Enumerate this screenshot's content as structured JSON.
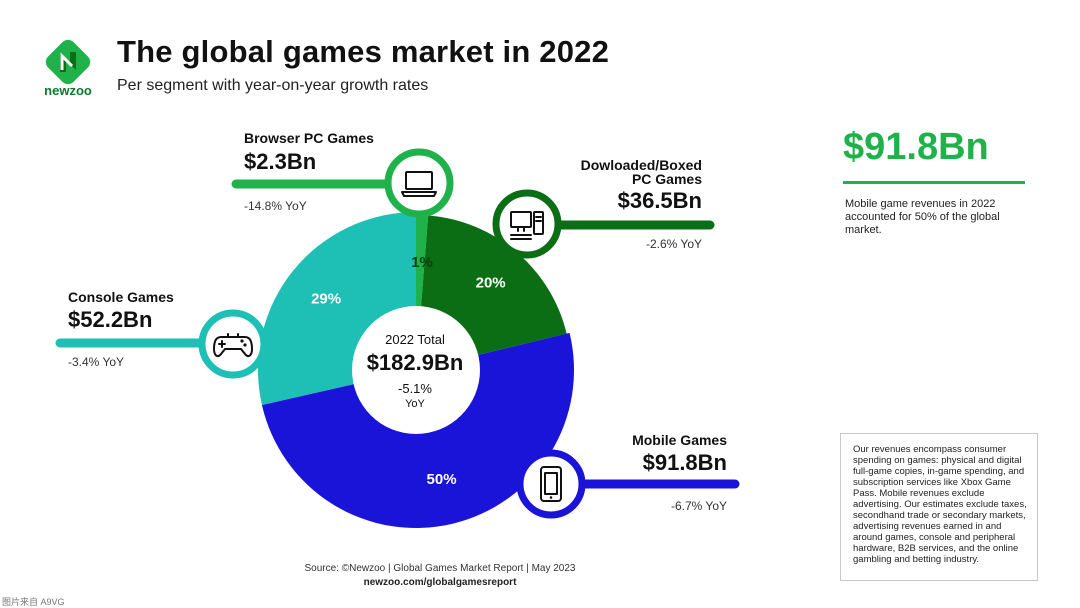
{
  "header": {
    "title": "The global games market in 2022",
    "subtitle": "Per segment with year-on-year growth rates",
    "brand": "newzoo"
  },
  "chart_data": {
    "type": "pie",
    "title": "The global games market in 2022",
    "subtitle": "Per segment with year-on-year growth rates",
    "center": {
      "label": "2022 Total",
      "value": "$182.9Bn",
      "yoy": "-5.1%",
      "yoy_unit": "YoY"
    },
    "segments": [
      {
        "name": "Browser PC Games",
        "value_label": "$2.3Bn",
        "value": 2.3,
        "share": 1,
        "share_label": "1%",
        "yoy": "-14.8% YoY",
        "color": "#1fb24a",
        "icon": "laptop-icon"
      },
      {
        "name": "Dowloaded/Boxed PC Games",
        "name_lines": [
          "Dowloaded/Boxed",
          "PC Games"
        ],
        "value_label": "$36.5Bn",
        "value": 36.5,
        "share": 20,
        "share_label": "20%",
        "yoy": "-2.6% YoY",
        "color": "#0b6d14",
        "icon": "desktop-computer-icon"
      },
      {
        "name": "Mobile Games",
        "value_label": "$91.8Bn",
        "value": 91.8,
        "share": 50,
        "share_label": "50%",
        "yoy": "-6.7% YoY",
        "color": "#1a14d8",
        "icon": "smartphone-icon"
      },
      {
        "name": "Console Games",
        "value_label": "$52.2Bn",
        "value": 52.2,
        "share": 29,
        "share_label": "29%",
        "yoy": "-3.4% YoY",
        "color": "#1ebfb4",
        "icon": "gamepad-icon"
      }
    ]
  },
  "highlight": {
    "value": "$91.8Bn",
    "text": "Mobile game revenues in 2022 accounted for 50% of the global market.",
    "color": "#1fb24a"
  },
  "note": "Our revenues encompass consumer spending on games: physical and digital full-game copies, in-game spending, and subscription services like Xbox Game Pass. Mobile revenues exclude advertising. Our estimates exclude taxes, secondhand trade or secondary markets, advertising revenues earned in and around games, console and peripheral hardware, B2B services, and the online gambling and betting industry.",
  "footer": {
    "source": "Source: ©Newzoo | Global Games Market Report | May 2023",
    "site": "newzoo.com/globalgamesreport"
  },
  "watermark": "图片来自 A9VG"
}
